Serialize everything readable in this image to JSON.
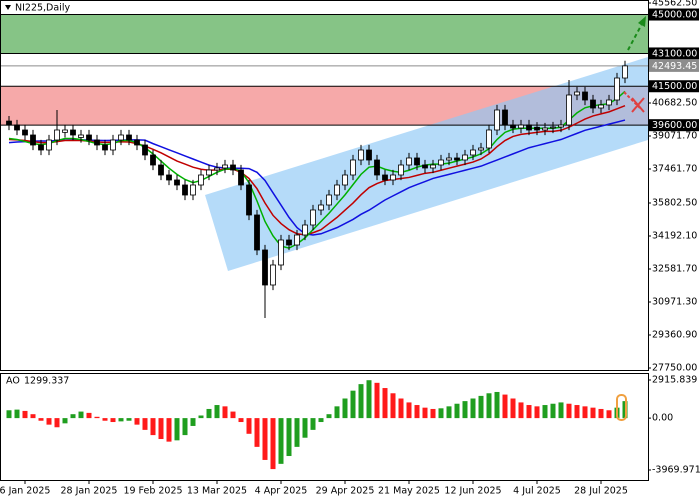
{
  "chart_data": {
    "type": "candlestick",
    "title": "NI225,Daily",
    "categories": [
      null,
      null,
      "6 Jan 2025",
      null,
      null,
      null,
      null,
      null,
      null,
      null,
      "28 Jan 2025",
      null,
      null,
      null,
      null,
      null,
      null,
      null,
      "19 Feb 2025",
      null,
      null,
      null,
      null,
      null,
      null,
      null,
      "13 Mar 2025",
      null,
      null,
      null,
      null,
      null,
      null,
      null,
      "4 Apr 2025",
      null,
      null,
      null,
      null,
      null,
      null,
      null,
      "29 Apr 2025",
      null,
      null,
      null,
      null,
      null,
      null,
      null,
      "21 May 2025",
      null,
      null,
      null,
      null,
      null,
      null,
      null,
      "12 Jun 2025",
      null,
      null,
      null,
      null,
      null,
      null,
      null,
      "4 Jul 2025",
      null,
      null,
      null,
      null,
      null,
      null,
      null,
      "28 Jul 2025",
      null,
      null,
      null
    ],
    "open": [
      39800,
      39609,
      39365,
      39121,
      38633,
      38389,
      38877,
      39250,
      39365,
      39000,
      39121,
      38877,
      38633,
      38389,
      38877,
      39121,
      38877,
      38633,
      38145,
      37657,
      37169,
      36925,
      36681,
      36193,
      36681,
      37169,
      37413,
      37511,
      37657,
      37413,
      36681,
      35217,
      33509,
      31801,
      32777,
      33997,
      33753,
      34241,
      34729,
      35461,
      35705,
      36193,
      36681,
      37169,
      37901,
      38389,
      37901,
      37169,
      36925,
      37169,
      37657,
      37999,
      37657,
      37511,
      37657,
      37901,
      37999,
      37901,
      38145,
      38389,
      38487,
      39365,
      40341,
      39609,
      39463,
      39609,
      39500,
      39365,
      39463,
      39511,
      39609,
      41073,
      41219,
      40829,
      40438,
      40585,
      40829,
      41902
    ],
    "high": [
      40050,
      39859,
      39615,
      39371,
      38883,
      39127,
      40341,
      39615,
      39615,
      39371,
      39371,
      39127,
      38883,
      39127,
      39371,
      39371,
      39127,
      38883,
      38395,
      37907,
      37419,
      37175,
      36931,
      36931,
      37419,
      37663,
      37761,
      37907,
      37907,
      37663,
      36931,
      35467,
      33759,
      33027,
      34247,
      34247,
      34491,
      34979,
      35711,
      35955,
      36443,
      36931,
      37419,
      38151,
      38639,
      38639,
      38151,
      37419,
      37419,
      37907,
      38249,
      38249,
      37907,
      37907,
      38151,
      38249,
      38249,
      38395,
      38639,
      38737,
      39615,
      40591,
      40591,
      39859,
      39859,
      39859,
      39750,
      39713,
      39761,
      39859,
      41805,
      41469,
      41469,
      41079,
      40835,
      41079,
      42152,
      42743
    ],
    "low": [
      39359,
      39115,
      38871,
      38383,
      38139,
      38139,
      38627,
      39000,
      38871,
      38750,
      38627,
      38383,
      38139,
      38139,
      38627,
      38627,
      38383,
      37895,
      37407,
      36919,
      36675,
      36431,
      35943,
      35943,
      36431,
      36919,
      37163,
      37261,
      37163,
      36431,
      34967,
      33259,
      30191,
      31551,
      32527,
      33503,
      33503,
      33991,
      34479,
      35211,
      35455,
      35943,
      36431,
      36919,
      37651,
      37651,
      36919,
      36675,
      36675,
      36919,
      37407,
      37407,
      37261,
      37261,
      37407,
      37651,
      37651,
      37651,
      37895,
      38139,
      38237,
      39115,
      39359,
      39213,
      39213,
      39115,
      39115,
      39115,
      39213,
      39261,
      39359,
      40823,
      40579,
      40188,
      40188,
      40335,
      40579,
      41652
    ],
    "close": [
      39609,
      39365,
      39121,
      38633,
      38389,
      38877,
      39365,
      39365,
      39121,
      39121,
      38877,
      38633,
      38389,
      38877,
      39121,
      38877,
      38633,
      38145,
      37657,
      37169,
      36925,
      36681,
      36193,
      36681,
      37169,
      37413,
      37511,
      37657,
      37413,
      36681,
      35217,
      33509,
      31801,
      32777,
      33997,
      33753,
      34241,
      34729,
      35461,
      35705,
      36193,
      36681,
      37169,
      37901,
      38389,
      37901,
      37169,
      36925,
      37169,
      37657,
      37999,
      37657,
      37511,
      37657,
      37901,
      37999,
      37901,
      38145,
      38389,
      38487,
      39365,
      40341,
      39609,
      39463,
      39609,
      39365,
      39365,
      39463,
      39511,
      39609,
      41073,
      41219,
      40829,
      40438,
      40585,
      40829,
      41902,
      42493.45
    ],
    "up_color": "#ffffff",
    "down_color": "#000000",
    "series": [
      {
        "color": "#1010e0",
        "values": [
          38750,
          38780,
          38800,
          38820,
          38830,
          38830,
          38850,
          38870,
          38880,
          38880,
          38870,
          38860,
          38850,
          38860,
          38870,
          38880,
          38880,
          38870,
          38700,
          38550,
          38400,
          38250,
          38100,
          37950,
          37800,
          37650,
          37550,
          37511,
          37500,
          37500,
          37480,
          37300,
          36900,
          36300,
          35700,
          35100,
          34600,
          34300,
          34241,
          34300,
          34450,
          34600,
          34800,
          35000,
          35250,
          35450,
          35700,
          35950,
          36150,
          36350,
          36550,
          36700,
          36850,
          37000,
          37100,
          37200,
          37300,
          37400,
          37500,
          37600,
          37750,
          37900,
          38050,
          38200,
          38350,
          38500,
          38600,
          38700,
          38800,
          38900,
          39050,
          39200,
          39350,
          39450,
          39550,
          39650,
          39750,
          39850
        ]
      },
      {
        "color": "#c00000",
        "values": [
          38900,
          38880,
          38850,
          38800,
          38750,
          38750,
          38800,
          38850,
          38850,
          38850,
          38820,
          38780,
          38760,
          38770,
          38790,
          38780,
          38700,
          38580,
          38420,
          38250,
          38050,
          37850,
          37700,
          37550,
          37450,
          37400,
          37420,
          37450,
          37450,
          37300,
          37000,
          36500,
          35800,
          35200,
          34800,
          34500,
          34300,
          34250,
          34350,
          34500,
          34800,
          35100,
          35450,
          35800,
          36200,
          36550,
          36750,
          36900,
          36950,
          37000,
          37050,
          37150,
          37250,
          37300,
          37400,
          37500,
          37600,
          37700,
          37800,
          37950,
          38200,
          38550,
          38850,
          39050,
          39150,
          39200,
          39250,
          39300,
          39300,
          39350,
          39500,
          39700,
          39900,
          40050,
          40150,
          40250,
          40400,
          40550
        ]
      },
      {
        "color": "#00b000",
        "values": [
          38950,
          38900,
          38800,
          38700,
          38650,
          38700,
          38850,
          38950,
          38950,
          38900,
          38800,
          38700,
          38650,
          38700,
          38850,
          38850,
          38750,
          38500,
          38200,
          37850,
          37500,
          37200,
          36950,
          36800,
          36900,
          37100,
          37300,
          37450,
          37500,
          37350,
          36800,
          35900,
          34900,
          34200,
          33700,
          33600,
          33800,
          34100,
          34500,
          34900,
          35300,
          35750,
          36200,
          36700,
          37200,
          37550,
          37600,
          37450,
          37350,
          37300,
          37400,
          37550,
          37650,
          37700,
          37700,
          37750,
          37850,
          37950,
          38050,
          38200,
          38450,
          38900,
          39250,
          39400,
          39450,
          39450,
          39450,
          39450,
          39450,
          39500,
          39850,
          40200,
          40450,
          40550,
          40600,
          40650,
          40900,
          41250
        ]
      }
    ],
    "ylim": [
      27750,
      45562.5
    ],
    "yticks": [
      {
        "value": 45562.5,
        "label": "45562.50"
      },
      {
        "value": 40682.5,
        "label": "40682.50"
      },
      {
        "value": 39071.7,
        "label": "39071.70"
      },
      {
        "value": 37461.7,
        "label": "37461.70"
      },
      {
        "value": 35802.5,
        "label": "35802.50"
      },
      {
        "value": 34192.1,
        "label": "34192.10"
      },
      {
        "value": 32581.7,
        "label": "32581.70"
      },
      {
        "value": 30971.3,
        "label": "30971.30"
      },
      {
        "value": 29360.9,
        "label": "29360.90"
      },
      {
        "value": 27750,
        "label": "27750.00"
      }
    ],
    "zones": [
      {
        "from": 43100,
        "to": 45000,
        "color": "#86c486"
      },
      {
        "from": 39600,
        "to": 41500,
        "color": "#f6a9a9"
      }
    ],
    "levels": [
      {
        "value": 45000,
        "label": "45000.00",
        "color": "#000000"
      },
      {
        "value": 43100,
        "label": "43100.00",
        "color": "#000000"
      },
      {
        "value": 42493.45,
        "label": "42493.45",
        "color": "#8c8c8c"
      },
      {
        "value": 41500,
        "label": "41500.00",
        "color": "#000000"
      },
      {
        "value": 39600,
        "label": "39600.00",
        "color": "#000000"
      }
    ],
    "indicator": {
      "type": "bar",
      "name": "AO",
      "values": [
        600,
        650,
        550,
        300,
        -200,
        -500,
        -700,
        -400,
        300,
        500,
        400,
        100,
        -200,
        -300,
        -250,
        -200,
        -500,
        -900,
        -1300,
        -1600,
        -1800,
        -1700,
        -1300,
        -600,
        200,
        700,
        1000,
        900,
        500,
        -300,
        -1200,
        -2200,
        -3200,
        -3900,
        -3500,
        -2900,
        -2200,
        -1500,
        -900,
        -300,
        300,
        900,
        1500,
        2100,
        2600,
        2900,
        2700,
        2300,
        1900,
        1500,
        1200,
        1000,
        800,
        700,
        750,
        900,
        1100,
        1300,
        1500,
        1700,
        1900,
        2000,
        1800,
        1500,
        1200,
        1000,
        900,
        1000,
        1100,
        1200,
        1100,
        1000,
        900,
        800,
        700,
        600,
        800,
        1299.337
      ],
      "up_color": "#1f9e1f",
      "down_color": "#ff1a1a",
      "ylim": [
        -3969.971,
        2915.839
      ],
      "yticks": [
        {
          "value": 2915.839,
          "label": "2915.839"
        },
        {
          "value": 0,
          "label": "0.00"
        },
        {
          "value": -3969.971,
          "label": "-3969.971"
        }
      ]
    }
  }
}
